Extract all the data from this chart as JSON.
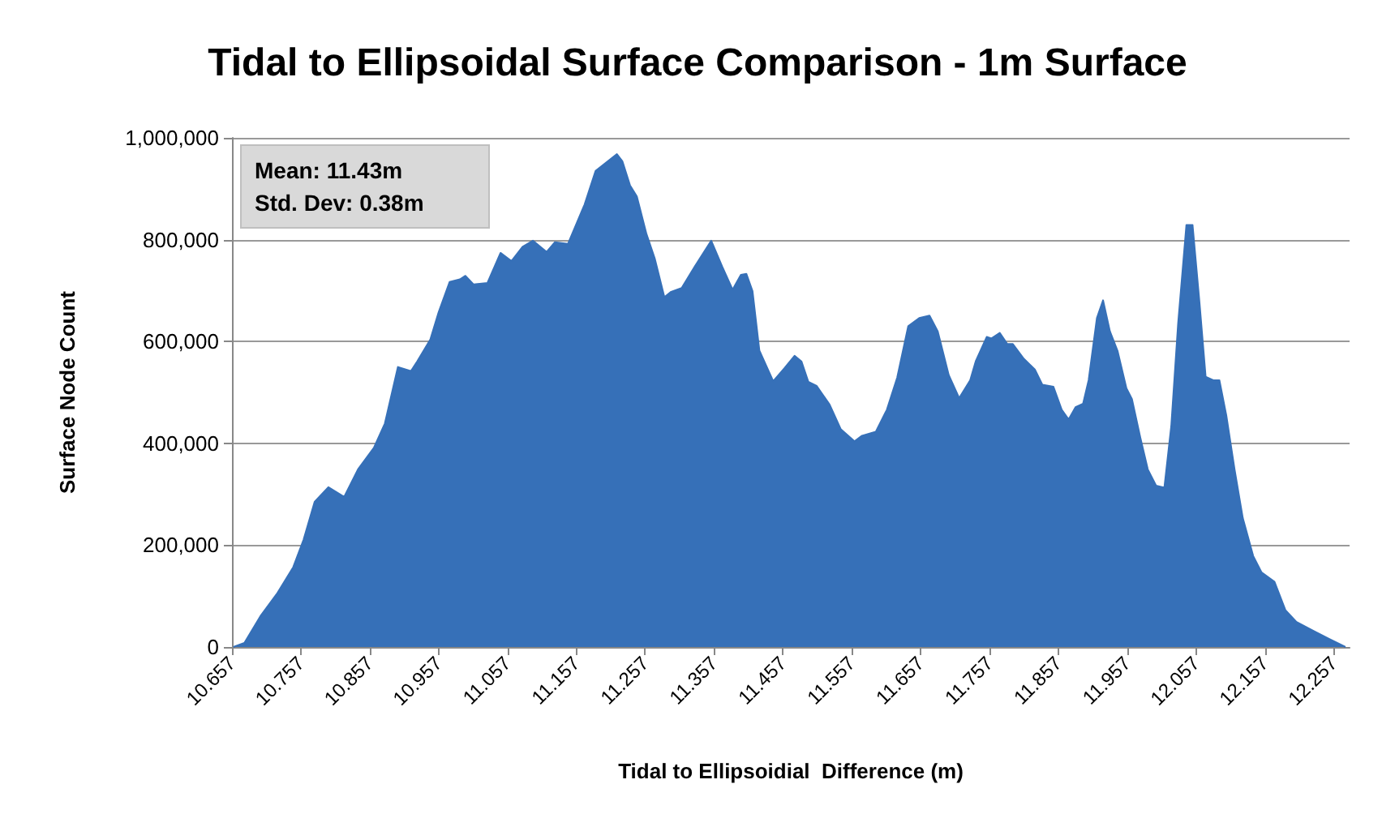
{
  "chart_data": {
    "type": "area",
    "title": "Tidal to Ellipsoidal Surface Comparison - 1m Surface",
    "xlabel": "Tidal to Ellipsoidial  Difference (m)",
    "ylabel": "Surface Node Count",
    "annotations": [
      "Mean: 11.43m",
      "Std. Dev: 0.38m"
    ],
    "x": [
      10.659,
      10.675,
      10.699,
      10.722,
      10.746,
      10.761,
      10.777,
      10.797,
      10.82,
      10.84,
      10.863,
      10.879,
      10.898,
      10.917,
      10.926,
      10.945,
      10.957,
      10.973,
      10.988,
      10.996,
      11.008,
      11.028,
      11.047,
      11.063,
      11.079,
      11.094,
      11.114,
      11.126,
      11.145,
      11.169,
      11.185,
      11.216,
      11.224,
      11.235,
      11.245,
      11.259,
      11.271,
      11.285,
      11.294,
      11.31,
      11.329,
      11.353,
      11.369,
      11.384,
      11.396,
      11.404,
      11.413,
      11.423,
      11.443,
      11.459,
      11.474,
      11.484,
      11.494,
      11.506,
      11.525,
      11.541,
      11.561,
      11.572,
      11.592,
      11.608,
      11.623,
      11.639,
      11.655,
      11.67,
      11.682,
      11.698,
      11.713,
      11.729,
      11.737,
      11.753,
      11.76,
      11.772,
      11.783,
      11.791,
      11.807,
      11.823,
      11.834,
      11.85,
      11.862,
      11.872,
      11.882,
      11.893,
      11.901,
      11.913,
      11.922,
      11.932,
      11.943,
      11.956,
      11.964,
      11.976,
      11.987,
      11.999,
      12.011,
      12.021,
      12.031,
      12.043,
      12.052,
      12.062,
      12.071,
      12.082,
      12.091,
      12.101,
      12.113,
      12.125,
      12.14,
      12.152,
      12.171,
      12.187,
      12.203,
      12.227,
      12.25,
      12.274
    ],
    "series": [
      {
        "color": "#3670b8",
        "values": [
          0,
          8000,
          62000,
          104000,
          157000,
          211000,
          285000,
          314000,
          295000,
          349000,
          391000,
          439000,
          550000,
          542000,
          561000,
          604000,
          657000,
          717000,
          722000,
          729000,
          712000,
          715000,
          774000,
          758000,
          786000,
          798000,
          776000,
          795000,
          792000,
          869000,
          935000,
          968000,
          954000,
          907000,
          885000,
          811000,
          763000,
          687000,
          697000,
          705000,
          747000,
          798000,
          747000,
          702000,
          731000,
          733000,
          699000,
          582000,
          522000,
          547000,
          572000,
          561000,
          521000,
          513000,
          476000,
          428000,
          404000,
          415000,
          423000,
          466000,
          529000,
          630000,
          646000,
          651000,
          620000,
          534000,
          489000,
          524000,
          561000,
          609000,
          606000,
          617000,
          595000,
          595000,
          566000,
          545000,
          515000,
          511000,
          466000,
          447000,
          471000,
          478000,
          524000,
          646000,
          681000,
          620000,
          582000,
          508000,
          487000,
          412000,
          349000,
          317000,
          313000,
          434000,
          636000,
          829000,
          829000,
          678000,
          531000,
          524000,
          524000,
          455000,
          349000,
          253000,
          179000,
          147000,
          128000,
          72000,
          49000,
          32000,
          16000,
          0
        ]
      }
    ],
    "xlim": [
      10.657,
      12.28
    ],
    "xticks": [
      10.657,
      10.757,
      10.857,
      10.957,
      11.057,
      11.157,
      11.257,
      11.357,
      11.457,
      11.557,
      11.657,
      11.757,
      11.857,
      11.957,
      12.057,
      12.157,
      12.257
    ],
    "ylim": [
      0,
      1000000
    ],
    "yticks": [
      {
        "value": 0,
        "label": "0"
      },
      {
        "value": 200000,
        "label": "200,000"
      },
      {
        "value": 400000,
        "label": "400,000"
      },
      {
        "value": 600000,
        "label": "600,000"
      },
      {
        "value": 800000,
        "label": "800,000"
      },
      {
        "value": 1000000,
        "label": "1,000,000"
      }
    ],
    "grid": "y",
    "marker": "none",
    "line_style": "solid"
  }
}
